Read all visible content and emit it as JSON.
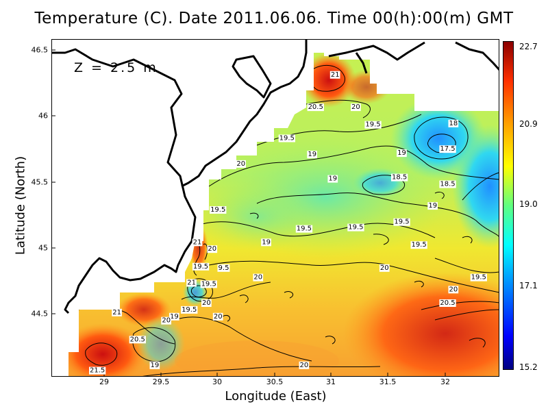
{
  "title": "Temperature (C). Date 2011.06.06. Time 00(h):00(m) GMT",
  "depth_label": "Z = 2.5 m",
  "x_axis": {
    "label": "Longitude (East)",
    "ticks": [
      "29",
      "29.5",
      "30",
      "30.5",
      "31",
      "31.5",
      "32"
    ],
    "tick_values": [
      29,
      29.5,
      30,
      30.5,
      31,
      31.5,
      32
    ],
    "range": [
      28.55,
      32.45
    ]
  },
  "y_axis": {
    "label": "Latitude (North)",
    "ticks": [
      "44.5",
      "45",
      "45.5",
      "46",
      "46.5"
    ],
    "tick_values": [
      44.5,
      45,
      45.5,
      46,
      46.5
    ],
    "range": [
      44.05,
      46.55
    ]
  },
  "colorbar": {
    "ticks": [
      "22.7",
      "20.9",
      "19.0",
      "17.1",
      "15.2"
    ],
    "tick_values": [
      22.7,
      20.9,
      19.0,
      17.1,
      15.2
    ],
    "colors": {
      "min": "#000080",
      "mid": "#ffff00",
      "max": "#8b0000"
    }
  },
  "contour_labels": [
    {
      "text": "21",
      "lon": 31.02,
      "lat": 46.29
    },
    {
      "text": "20.5",
      "lon": 30.85,
      "lat": 46.05
    },
    {
      "text": "20",
      "lon": 31.2,
      "lat": 46.05
    },
    {
      "text": "19.5",
      "lon": 31.35,
      "lat": 45.92
    },
    {
      "text": "18",
      "lon": 32.05,
      "lat": 45.93
    },
    {
      "text": "19.5",
      "lon": 30.6,
      "lat": 45.82
    },
    {
      "text": "19",
      "lon": 31.6,
      "lat": 45.71
    },
    {
      "text": "17.5",
      "lon": 32.0,
      "lat": 45.74
    },
    {
      "text": "20",
      "lon": 30.2,
      "lat": 45.63
    },
    {
      "text": "19",
      "lon": 30.82,
      "lat": 45.7
    },
    {
      "text": "19",
      "lon": 31.0,
      "lat": 45.52
    },
    {
      "text": "18.5",
      "lon": 31.58,
      "lat": 45.53
    },
    {
      "text": "18.5",
      "lon": 32.0,
      "lat": 45.48
    },
    {
      "text": "19",
      "lon": 31.87,
      "lat": 45.32
    },
    {
      "text": "19.5",
      "lon": 30.0,
      "lat": 45.29
    },
    {
      "text": "19.5",
      "lon": 31.6,
      "lat": 45.2
    },
    {
      "text": "19.5",
      "lon": 30.75,
      "lat": 45.15
    },
    {
      "text": "19.5",
      "lon": 31.2,
      "lat": 45.16
    },
    {
      "text": "19",
      "lon": 30.42,
      "lat": 45.05
    },
    {
      "text": "19.5",
      "lon": 31.75,
      "lat": 45.03
    },
    {
      "text": "20",
      "lon": 29.95,
      "lat": 45.0
    },
    {
      "text": "21",
      "lon": 29.82,
      "lat": 45.05
    },
    {
      "text": "19.5",
      "lon": 29.85,
      "lat": 44.87
    },
    {
      "text": "9.5",
      "lon": 30.05,
      "lat": 44.86
    },
    {
      "text": "20",
      "lon": 31.45,
      "lat": 44.86
    },
    {
      "text": "21",
      "lon": 29.77,
      "lat": 44.75
    },
    {
      "text": "19.5",
      "lon": 29.92,
      "lat": 44.74
    },
    {
      "text": "20",
      "lon": 30.35,
      "lat": 44.79
    },
    {
      "text": "19.5",
      "lon": 32.27,
      "lat": 44.79
    },
    {
      "text": "20",
      "lon": 32.05,
      "lat": 44.7
    },
    {
      "text": "20",
      "lon": 29.9,
      "lat": 44.6
    },
    {
      "text": "20.5",
      "lon": 32.0,
      "lat": 44.6
    },
    {
      "text": "21",
      "lon": 29.12,
      "lat": 44.53
    },
    {
      "text": "19.5",
      "lon": 29.75,
      "lat": 44.55
    },
    {
      "text": "19",
      "lon": 29.62,
      "lat": 44.5
    },
    {
      "text": "20",
      "lon": 30.0,
      "lat": 44.5
    },
    {
      "text": "20",
      "lon": 29.55,
      "lat": 44.47
    },
    {
      "text": "20.5",
      "lon": 29.3,
      "lat": 44.33
    },
    {
      "text": "19",
      "lon": 29.45,
      "lat": 44.14
    },
    {
      "text": "20",
      "lon": 30.75,
      "lat": 44.14
    },
    {
      "text": "21.5",
      "lon": 28.95,
      "lat": 44.1
    }
  ]
}
